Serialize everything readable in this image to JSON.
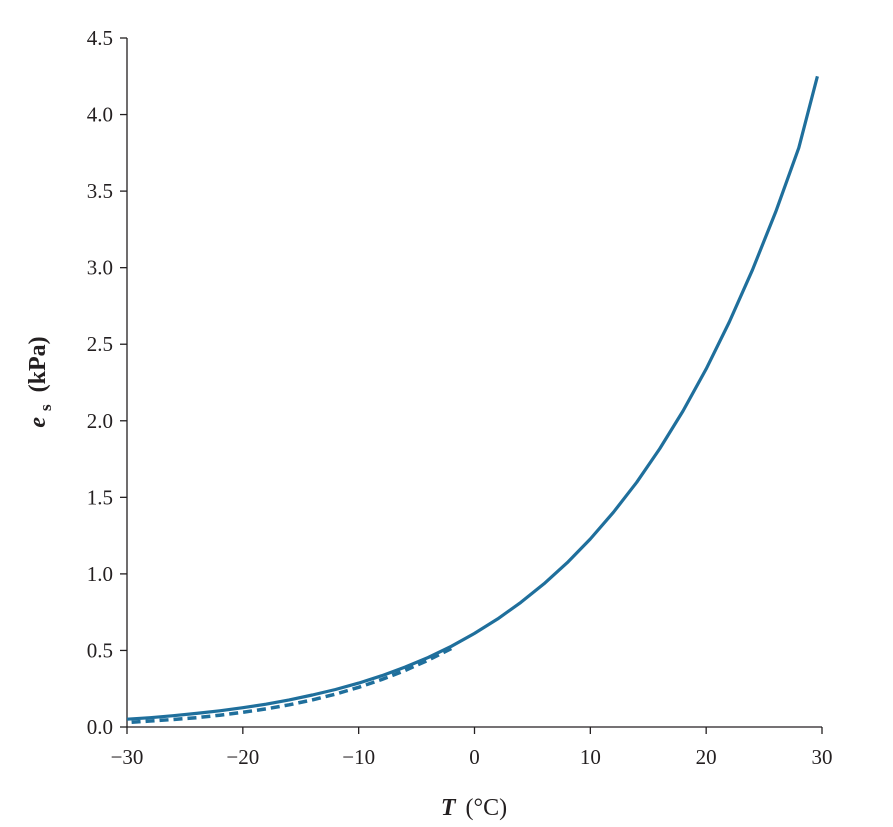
{
  "chart_data": {
    "type": "line",
    "title": "",
    "xlabel": {
      "symbol": "T",
      "unit": "(°C)"
    },
    "ylabel": {
      "symbol": "e",
      "subscript": "s",
      "unit": "(kPa)"
    },
    "xlim": [
      -30,
      30
    ],
    "ylim": [
      0,
      4.5
    ],
    "x_ticks": [
      -30,
      -20,
      -10,
      0,
      10,
      20,
      30
    ],
    "x_tick_labels": [
      "−30",
      "−20",
      "−10",
      "0",
      "10",
      "20",
      "30"
    ],
    "y_ticks": [
      0,
      0.5,
      1,
      1.5,
      2,
      2.5,
      3,
      3.5,
      4,
      4.5
    ],
    "y_tick_labels": [
      "0.0",
      "0.5",
      "1.0",
      "1.5",
      "2.0",
      "2.5",
      "3.0",
      "3.5",
      "4.0",
      "4.5"
    ],
    "grid": false,
    "legend": "none",
    "series": [
      {
        "style": "solid",
        "color": "#1f6f9c",
        "x": [
          -30,
          -28,
          -26,
          -24,
          -22,
          -20,
          -18,
          -16,
          -14,
          -12,
          -10,
          -8,
          -6,
          -4,
          -2,
          0,
          2,
          4,
          6,
          8,
          10,
          12,
          14,
          16,
          18,
          20,
          22,
          24,
          26,
          28,
          29.6
        ],
        "y": [
          0.051,
          0.061,
          0.074,
          0.089,
          0.106,
          0.126,
          0.149,
          0.177,
          0.209,
          0.245,
          0.287,
          0.335,
          0.391,
          0.454,
          0.527,
          0.611,
          0.706,
          0.814,
          0.935,
          1.073,
          1.228,
          1.403,
          1.598,
          1.818,
          2.064,
          2.339,
          2.645,
          2.986,
          3.364,
          3.783,
          4.25
        ]
      },
      {
        "style": "dashed",
        "color": "#1f6f9c",
        "x": [
          -29.6,
          -28,
          -26,
          -24,
          -22,
          -20,
          -18,
          -16,
          -14,
          -12,
          -10,
          -8,
          -6,
          -4,
          -2
        ],
        "y": [
          0.031,
          0.039,
          0.049,
          0.061,
          0.077,
          0.096,
          0.118,
          0.145,
          0.177,
          0.215,
          0.259,
          0.31,
          0.369,
          0.436,
          0.512
        ]
      }
    ]
  }
}
